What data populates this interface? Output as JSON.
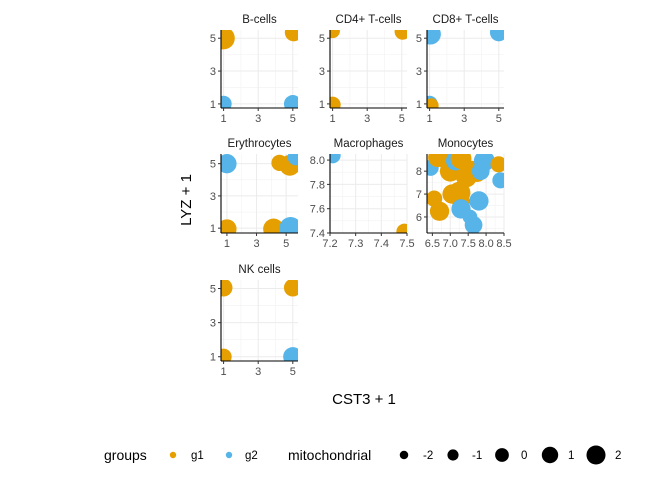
{
  "chart_data": {
    "type": "scatter",
    "layout": "faceted small multiples, 3 columns, free scales",
    "xlabel": "CST3 + 1",
    "ylabel": "LYZ + 1",
    "colors": {
      "g1": "#E69F00",
      "g2": "#56B4E9"
    },
    "legend": {
      "placement": "bottom",
      "color_title": "groups",
      "color_entries": [
        "g1",
        "g2"
      ],
      "size_title": "mitochondrial",
      "size_entries": [
        -2,
        -1,
        0,
        1,
        2
      ],
      "size_labels": [
        "-2",
        "-1",
        "0",
        "1",
        "2"
      ]
    },
    "facets": [
      {
        "title": "B-cells",
        "xlim": [
          0.85,
          5.3
        ],
        "ylim": [
          0.75,
          5.5
        ],
        "xticks": [
          1,
          3,
          5
        ],
        "xtick_labels": [
          "1",
          "3",
          "5"
        ],
        "yticks": [
          1,
          3,
          5
        ],
        "ytick_labels": [
          "1",
          "3",
          "5"
        ],
        "points": [
          {
            "x": 1.0,
            "y": 5.0,
            "group": "g1",
            "mito": 2
          },
          {
            "x": 5.05,
            "y": 5.35,
            "group": "g1",
            "mito": 0.5
          },
          {
            "x": 1.0,
            "y": 1.0,
            "group": "g2",
            "mito": 0
          },
          {
            "x": 5.0,
            "y": 1.0,
            "group": "g2",
            "mito": 0.5
          }
        ]
      },
      {
        "title": "CD4+ T-cells",
        "xlim": [
          0.85,
          5.3
        ],
        "ylim": [
          0.75,
          5.5
        ],
        "xticks": [
          1,
          3,
          5
        ],
        "xtick_labels": [
          "1",
          "3",
          "5"
        ],
        "yticks": [
          1,
          3,
          5
        ],
        "ytick_labels": [
          "1",
          "3",
          "5"
        ],
        "points": [
          {
            "x": 1.0,
            "y": 5.45,
            "group": "g1",
            "mito": -0.5
          },
          {
            "x": 5.05,
            "y": 5.4,
            "group": "g1",
            "mito": 0
          },
          {
            "x": 1.0,
            "y": 0.95,
            "group": "g1",
            "mito": 0
          }
        ]
      },
      {
        "title": "CD8+ T-cells",
        "xlim": [
          0.85,
          5.3
        ],
        "ylim": [
          0.75,
          5.5
        ],
        "xticks": [
          1,
          3,
          5
        ],
        "xtick_labels": [
          "1",
          "3",
          "5"
        ],
        "yticks": [
          1,
          3,
          5
        ],
        "ytick_labels": [
          "1",
          "3",
          "5"
        ],
        "points": [
          {
            "x": 1.05,
            "y": 5.25,
            "group": "g2",
            "mito": 1.5
          },
          {
            "x": 5.0,
            "y": 5.35,
            "group": "g2",
            "mito": 0.5
          },
          {
            "x": 1.0,
            "y": 1.0,
            "group": "g2",
            "mito": 0
          },
          {
            "x": 1.1,
            "y": 0.9,
            "group": "g1",
            "mito": -0.5
          }
        ]
      },
      {
        "title": "Erythrocytes",
        "xlim": [
          0.6,
          5.8
        ],
        "ylim": [
          0.7,
          5.6
        ],
        "xticks": [
          1,
          3,
          5
        ],
        "xtick_labels": [
          "1",
          "3",
          "5"
        ],
        "yticks": [
          1,
          3,
          5
        ],
        "ytick_labels": [
          "1",
          "3",
          "5"
        ],
        "points": [
          {
            "x": 1.0,
            "y": 5.0,
            "group": "g2",
            "mito": 1
          },
          {
            "x": 4.55,
            "y": 5.05,
            "group": "g1",
            "mito": 0
          },
          {
            "x": 5.25,
            "y": 4.9,
            "group": "g1",
            "mito": 1.5
          },
          {
            "x": 5.65,
            "y": 5.4,
            "group": "g2",
            "mito": 0
          },
          {
            "x": 1.0,
            "y": 0.95,
            "group": "g1",
            "mito": 1
          },
          {
            "x": 4.15,
            "y": 0.95,
            "group": "g1",
            "mito": 1.5
          },
          {
            "x": 5.3,
            "y": 1.0,
            "group": "g2",
            "mito": 2
          }
        ]
      },
      {
        "title": "Macrophages",
        "xlim": [
          7.2,
          7.5
        ],
        "ylim": [
          7.4,
          8.05
        ],
        "xticks": [
          7.2,
          7.3,
          7.4,
          7.5
        ],
        "xtick_labels": [
          "7.2",
          "7.3",
          "7.4",
          "7.5"
        ],
        "yticks": [
          7.4,
          7.6,
          7.8,
          8.0
        ],
        "ytick_labels": [
          "7.4",
          "7.6",
          "7.8",
          "8.0"
        ],
        "points": [
          {
            "x": 7.21,
            "y": 8.04,
            "group": "g2",
            "mito": 0
          },
          {
            "x": 7.49,
            "y": 7.41,
            "group": "g1",
            "mito": 0
          }
        ]
      },
      {
        "title": "Monocytes",
        "xlim": [
          6.35,
          8.5
        ],
        "ylim": [
          5.3,
          8.75
        ],
        "xticks": [
          6.5,
          7.0,
          7.5,
          8.0,
          8.5
        ],
        "xtick_labels": [
          "6.5",
          "7.0",
          "7.5",
          "8.0",
          "8.5"
        ],
        "yticks": [
          6,
          7,
          8
        ],
        "ytick_labels": [
          "6",
          "7",
          "8"
        ],
        "points": [
          {
            "x": 6.45,
            "y": 8.15,
            "group": "g2",
            "mito": 0
          },
          {
            "x": 6.55,
            "y": 6.8,
            "group": "g1",
            "mito": 0
          },
          {
            "x": 6.65,
            "y": 8.6,
            "group": "g1",
            "mito": 1
          },
          {
            "x": 6.7,
            "y": 6.25,
            "group": "g1",
            "mito": 1
          },
          {
            "x": 6.9,
            "y": 8.4,
            "group": "g1",
            "mito": 0
          },
          {
            "x": 7.0,
            "y": 8.0,
            "group": "g1",
            "mito": 1.5
          },
          {
            "x": 7.05,
            "y": 7.0,
            "group": "g1",
            "mito": 1
          },
          {
            "x": 7.15,
            "y": 8.45,
            "group": "g2",
            "mito": 1
          },
          {
            "x": 7.25,
            "y": 7.05,
            "group": "g1",
            "mito": 2
          },
          {
            "x": 7.3,
            "y": 8.55,
            "group": "g1",
            "mito": 1.5
          },
          {
            "x": 7.3,
            "y": 6.65,
            "group": "g1",
            "mito": 0.5
          },
          {
            "x": 7.3,
            "y": 6.35,
            "group": "g2",
            "mito": 1
          },
          {
            "x": 7.45,
            "y": 7.75,
            "group": "g1",
            "mito": 1.5
          },
          {
            "x": 7.6,
            "y": 8.1,
            "group": "g1",
            "mito": 0
          },
          {
            "x": 7.55,
            "y": 6.0,
            "group": "g2",
            "mito": -0.5
          },
          {
            "x": 7.65,
            "y": 5.65,
            "group": "g2",
            "mito": 0.5
          },
          {
            "x": 7.75,
            "y": 7.95,
            "group": "g1",
            "mito": 1
          },
          {
            "x": 7.85,
            "y": 8.0,
            "group": "g2",
            "mito": 0.5
          },
          {
            "x": 7.8,
            "y": 6.7,
            "group": "g2",
            "mito": 1
          },
          {
            "x": 7.95,
            "y": 8.45,
            "group": "g2",
            "mito": 1.5
          },
          {
            "x": 8.35,
            "y": 8.3,
            "group": "g1",
            "mito": 0
          },
          {
            "x": 8.4,
            "y": 7.6,
            "group": "g2",
            "mito": 0
          }
        ]
      },
      {
        "title": "NK cells",
        "xlim": [
          0.85,
          5.3
        ],
        "ylim": [
          0.75,
          5.5
        ],
        "xticks": [
          1,
          3,
          5
        ],
        "xtick_labels": [
          "1",
          "3",
          "5"
        ],
        "yticks": [
          1,
          3,
          5
        ],
        "ytick_labels": [
          "1",
          "3",
          "5"
        ],
        "points": [
          {
            "x": 1.0,
            "y": 5.05,
            "group": "g1",
            "mito": 0.5
          },
          {
            "x": 5.0,
            "y": 5.05,
            "group": "g1",
            "mito": 0.5
          },
          {
            "x": 1.0,
            "y": 1.0,
            "group": "g1",
            "mito": 0
          },
          {
            "x": 5.0,
            "y": 1.0,
            "group": "g2",
            "mito": 1
          }
        ]
      }
    ]
  }
}
